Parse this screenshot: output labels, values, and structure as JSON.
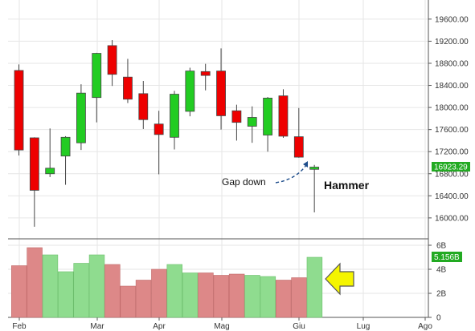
{
  "chart_data": {
    "type": "candlestick",
    "price_axis": {
      "ticks": [
        "16000.00",
        "16400.00",
        "16800.00",
        "17200.00",
        "17600.00",
        "18000.00",
        "18400.00",
        "18800.00",
        "19200.00",
        "19600.00"
      ],
      "ylim": [
        15650,
        19830
      ]
    },
    "volume_axis": {
      "ticks": [
        "0",
        "2B",
        "4B",
        "6B"
      ],
      "ylim": [
        0,
        6.4
      ]
    },
    "x_labels": [
      "Feb",
      "Mar",
      "Apr",
      "Mag",
      "Giu",
      "Lug",
      "Ago"
    ],
    "grid": true,
    "last_price_label": "16923.29",
    "last_volume_label": "5.156B",
    "colors": {
      "up": "#22cc22",
      "down": "#ee0000",
      "up_volume": "#8fdc8f",
      "down_volume": "#dd8888",
      "badge": "#22aa22"
    },
    "candles": [
      {
        "o": 18670,
        "h": 18780,
        "l": 17130,
        "c": 17230
      },
      {
        "o": 17450,
        "h": 17460,
        "l": 15840,
        "c": 16500
      },
      {
        "o": 16800,
        "h": 17620,
        "l": 16740,
        "c": 16900
      },
      {
        "o": 17120,
        "h": 17480,
        "l": 16600,
        "c": 17460
      },
      {
        "o": 17360,
        "h": 18420,
        "l": 17230,
        "c": 18260
      },
      {
        "o": 18180,
        "h": 18990,
        "l": 17730,
        "c": 18980
      },
      {
        "o": 19120,
        "h": 19220,
        "l": 18390,
        "c": 18600
      },
      {
        "o": 18550,
        "h": 18880,
        "l": 18080,
        "c": 18150
      },
      {
        "o": 18250,
        "h": 18480,
        "l": 17610,
        "c": 17780
      },
      {
        "o": 17700,
        "h": 17940,
        "l": 16790,
        "c": 17510
      },
      {
        "o": 17460,
        "h": 18300,
        "l": 17240,
        "c": 18240
      },
      {
        "o": 17930,
        "h": 18720,
        "l": 17840,
        "c": 18660
      },
      {
        "o": 18650,
        "h": 18790,
        "l": 18310,
        "c": 18580
      },
      {
        "o": 18660,
        "h": 19070,
        "l": 17600,
        "c": 17850
      },
      {
        "o": 17940,
        "h": 18050,
        "l": 17400,
        "c": 17730
      },
      {
        "o": 17660,
        "h": 18020,
        "l": 17360,
        "c": 17820
      },
      {
        "o": 17500,
        "h": 18190,
        "l": 17200,
        "c": 18170
      },
      {
        "o": 18210,
        "h": 18330,
        "l": 17450,
        "c": 17480
      },
      {
        "o": 17470,
        "h": 17990,
        "l": 17090,
        "c": 17100
      },
      {
        "o": 16880,
        "h": 16960,
        "l": 16100,
        "c": 16920
      }
    ],
    "volume": [
      4.3,
      5.8,
      5.2,
      3.8,
      4.5,
      5.2,
      4.4,
      2.6,
      3.1,
      4.0,
      4.4,
      3.7,
      3.7,
      3.5,
      3.6,
      3.5,
      3.4,
      3.1,
      3.3,
      5.0
    ],
    "annotations": {
      "gap_label": "Gap down",
      "hammer_label": "Hammer"
    }
  }
}
